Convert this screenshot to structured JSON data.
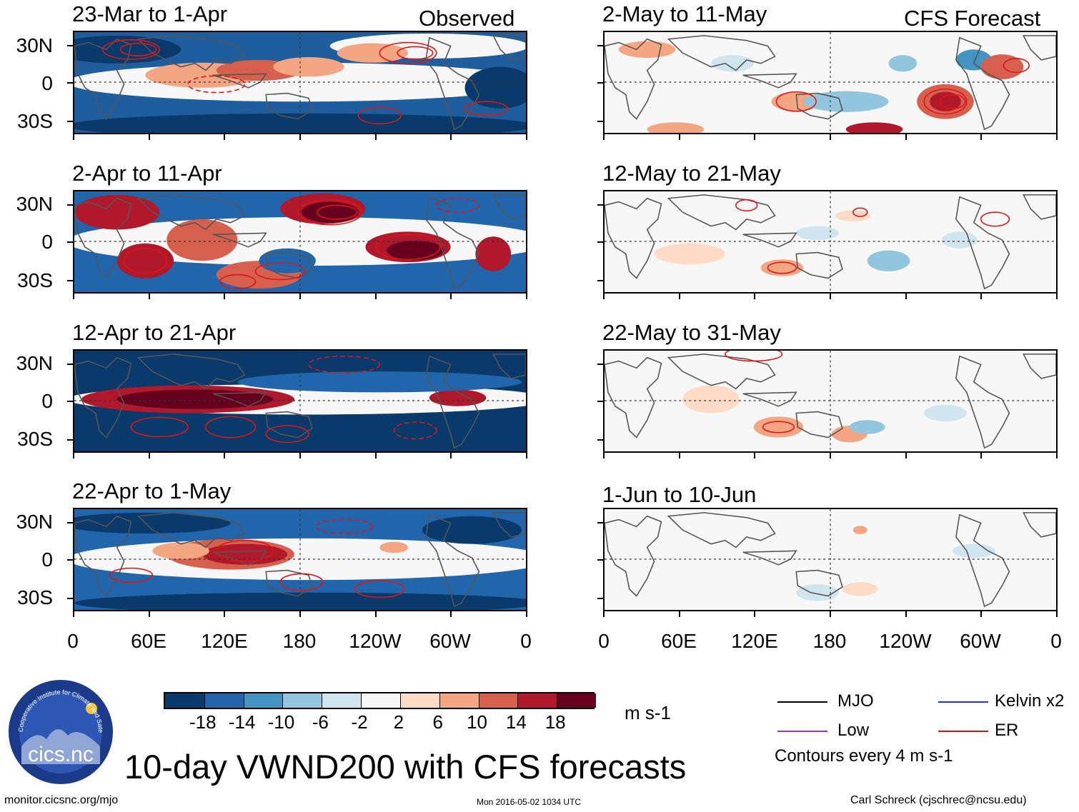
{
  "header": {
    "left": "Observed",
    "right": "CFS Forecast"
  },
  "panels_left": [
    {
      "title": "23-Mar to 1-Apr"
    },
    {
      "title": "2-Apr to 11-Apr"
    },
    {
      "title": "12-Apr to 21-Apr"
    },
    {
      "title": "22-Apr to 1-May"
    }
  ],
  "panels_right": [
    {
      "title": "2-May to 11-May"
    },
    {
      "title": "12-May to 21-May"
    },
    {
      "title": "22-May to 31-May"
    },
    {
      "title": "1-Jun to 10-Jun"
    }
  ],
  "axes": {
    "y_labels": [
      "30N",
      "0",
      "30S"
    ],
    "x_labels": [
      "0",
      "60E",
      "120E",
      "180",
      "120W",
      "60W",
      "0"
    ]
  },
  "colorbar": {
    "labels": [
      "-18",
      "-14",
      "-10",
      "-6",
      "-2",
      "2",
      "6",
      "10",
      "14",
      "18"
    ],
    "units": "m s-1",
    "colors": [
      "#0a3a6b",
      "#2166ac",
      "#4393c3",
      "#92c5de",
      "#d1e5f0",
      "#f7f7f7",
      "#fddbc7",
      "#f4a582",
      "#d6604d",
      "#b2182b",
      "#67001f"
    ]
  },
  "legend": {
    "items": [
      {
        "label": "MJO",
        "color": "#000000"
      },
      {
        "label": "Kelvin x2",
        "color": "#2233cc"
      },
      {
        "label": "Low",
        "color": "#9933cc"
      },
      {
        "label": "ER",
        "color": "#dd1111"
      }
    ],
    "note": "Contours every 4 m s-1"
  },
  "main_title": "10-day VWND200 with CFS forecasts",
  "logo_text": "cics.nc",
  "logo_ring_text": "Cooperative Institute for Climate and Satellites",
  "footer": {
    "left": "monitor.cicsnc.org/mjo",
    "center": "Mon 2016-05-02 1034 UTC",
    "right": "Carl Schreck (cjschrec@ncsu.edu)"
  },
  "chart_data": {
    "type": "heatmap",
    "variable": "200-hPa meridional wind anomaly (VWND200)",
    "units": "m s-1",
    "x_range": [
      0,
      360
    ],
    "y_range": [
      -40,
      40
    ],
    "contour_levels": [
      -18,
      -14,
      -10,
      -6,
      -2,
      2,
      6,
      10,
      14,
      18
    ]
  }
}
